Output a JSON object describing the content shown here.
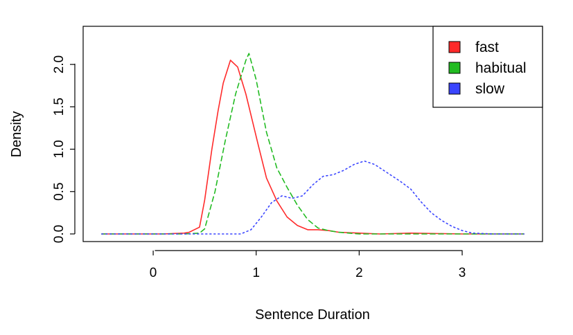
{
  "chart_data": {
    "type": "line",
    "title": "",
    "xlabel": "Sentence Duration",
    "ylabel": "Density",
    "xlim": [
      -0.68,
      3.78
    ],
    "ylim": [
      -0.09,
      2.45
    ],
    "xticks": [
      0,
      1,
      2,
      3
    ],
    "yticks": [
      0.0,
      0.5,
      1.0,
      1.5,
      2.0
    ],
    "xtick_labels": [
      "0",
      "1",
      "2",
      "3"
    ],
    "ytick_labels": [
      "0.0",
      "0.5",
      "1.0",
      "1.5",
      "2.0"
    ],
    "grid": false,
    "legend_position": "top-right",
    "series": [
      {
        "name": "fast",
        "color": "#ff2a2a",
        "dash": "solid",
        "x": [
          -0.5,
          -0.3,
          -0.1,
          0.1,
          0.3,
          0.35,
          0.45,
          0.5,
          0.57,
          0.63,
          0.68,
          0.75,
          0.82,
          0.9,
          0.96,
          1.02,
          1.1,
          1.2,
          1.3,
          1.4,
          1.5,
          1.6,
          1.7,
          1.8,
          2.0,
          2.2,
          2.5,
          3.0,
          3.6
        ],
        "y": [
          0.0,
          0.0,
          0.0,
          0.0,
          0.01,
          0.02,
          0.08,
          0.4,
          1.0,
          1.45,
          1.78,
          2.05,
          1.97,
          1.65,
          1.35,
          1.05,
          0.66,
          0.39,
          0.2,
          0.1,
          0.05,
          0.05,
          0.04,
          0.02,
          0.01,
          0.0,
          0.01,
          0.0,
          0.0
        ]
      },
      {
        "name": "habitual",
        "color": "#22bb22",
        "dash": "dashed",
        "x": [
          -0.5,
          0.0,
          0.3,
          0.45,
          0.5,
          0.6,
          0.7,
          0.8,
          0.9,
          0.93,
          1.0,
          1.1,
          1.2,
          1.3,
          1.4,
          1.5,
          1.6,
          1.7,
          1.8,
          1.9,
          2.0,
          2.2,
          2.5,
          3.0,
          3.6
        ],
        "y": [
          0.0,
          0.0,
          0.0,
          0.01,
          0.06,
          0.5,
          1.1,
          1.65,
          2.05,
          2.13,
          1.82,
          1.2,
          0.78,
          0.55,
          0.34,
          0.17,
          0.07,
          0.04,
          0.02,
          0.01,
          0.0,
          0.0,
          0.0,
          0.0,
          0.0
        ]
      },
      {
        "name": "slow",
        "color": "#3a45ff",
        "dash": "dotted",
        "x": [
          -0.5,
          0.0,
          0.5,
          0.85,
          0.95,
          1.05,
          1.15,
          1.25,
          1.35,
          1.45,
          1.55,
          1.65,
          1.75,
          1.85,
          1.95,
          2.05,
          2.15,
          2.25,
          2.4,
          2.5,
          2.6,
          2.7,
          2.8,
          2.9,
          3.0,
          3.1,
          3.3,
          3.6
        ],
        "y": [
          0.0,
          0.0,
          0.0,
          0.0,
          0.05,
          0.2,
          0.37,
          0.45,
          0.42,
          0.45,
          0.58,
          0.68,
          0.7,
          0.75,
          0.82,
          0.86,
          0.82,
          0.74,
          0.62,
          0.53,
          0.38,
          0.25,
          0.16,
          0.09,
          0.04,
          0.01,
          0.0,
          0.0
        ]
      }
    ]
  }
}
